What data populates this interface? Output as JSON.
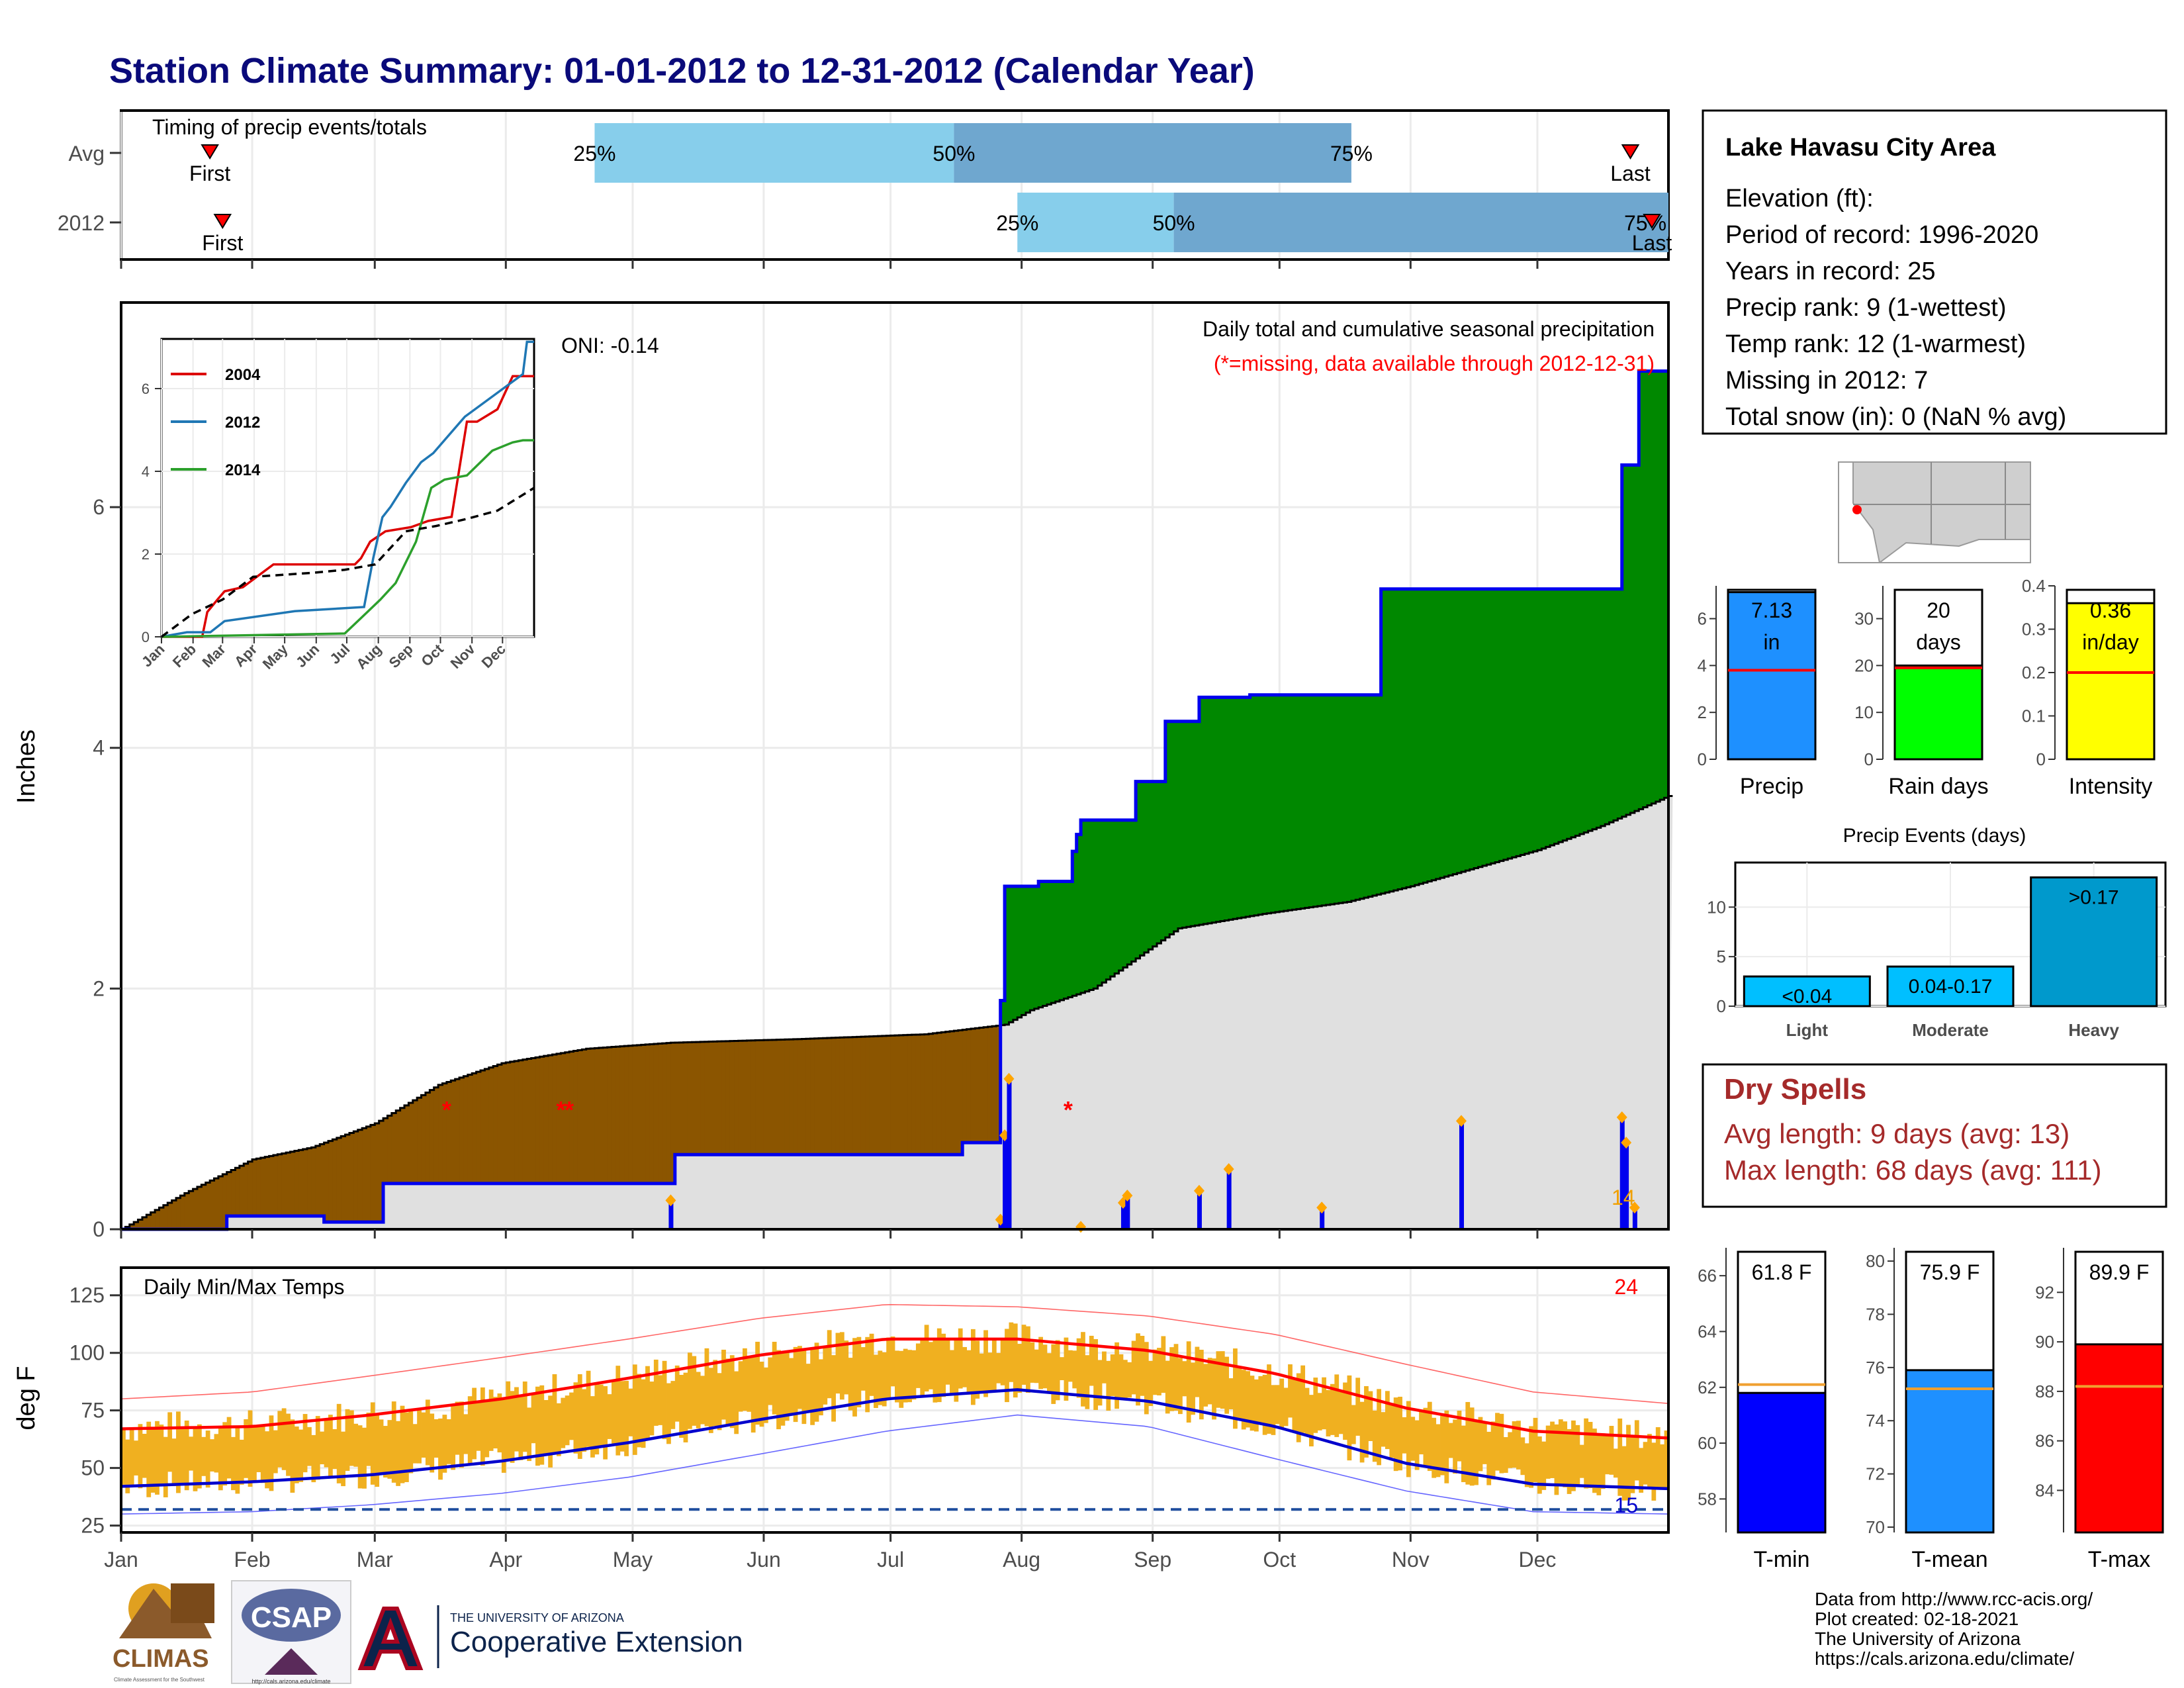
{
  "header": {
    "title": "Station Climate Summary: 01-01-2012 to 12-31-2012 (Calendar Year)"
  },
  "colors": {
    "title": "#0a0a7a",
    "deficit": "#8b5500",
    "surplus": "#008800",
    "avg_fill": "#e0e0e0",
    "cum_line": "#0000ee",
    "tmax": "#ff0000",
    "tmin": "#0000cc",
    "range_bar": "#f0b020",
    "quartile_light": "#87ceeb",
    "quartile_dark": "#6fa7cf"
  },
  "timing_panel": {
    "title": "Timing of precip events/totals",
    "rows": [
      {
        "label": "Avg",
        "first_day": 21,
        "p25_day": 112,
        "p50_day": 197,
        "p75_day": 291,
        "last_day": 357,
        "first_label": "First",
        "last_label": "Last",
        "p25_label": "25%",
        "p50_label": "50%",
        "p75_label": "75%"
      },
      {
        "label": "2012",
        "first_day": 24,
        "p25_day": 212,
        "p50_day": 249,
        "p75_day": 382,
        "last_day": 384,
        "first_label": "First",
        "last_label": "Last",
        "p25_label": "25%",
        "p50_label": "50%",
        "p75_label": "75%"
      }
    ]
  },
  "precip_panel": {
    "ylabel": "Inches",
    "yticks": [
      0,
      2,
      4,
      6
    ],
    "oni_label": "ONI: -0.14",
    "subtitle": "Daily total and cumulative seasonal precipitation",
    "missing_note": "(*=missing, data available through 2012-12-31)",
    "missing_count_label": "14"
  },
  "chart_data": [
    {
      "type": "area",
      "title": "Daily total and cumulative seasonal precipitation",
      "ylabel": "Inches",
      "ylim": [
        0,
        7.7
      ],
      "xlim": [
        0,
        366
      ],
      "x_categories": [
        "Jan",
        "Feb",
        "Mar",
        "Apr",
        "May",
        "Jun",
        "Jul",
        "Aug",
        "Sep",
        "Oct",
        "Nov",
        "Dec"
      ],
      "series": [
        {
          "name": "cumulative 2012",
          "x": [
            0,
            25,
            25,
            48,
            48,
            62,
            62,
            131,
            131,
            199,
            199,
            208,
            208,
            209,
            209,
            217,
            217,
            225,
            225,
            226,
            226,
            227,
            227,
            240,
            240,
            247,
            247,
            255,
            255,
            267,
            267,
            298,
            298,
            355,
            355,
            359,
            359,
            366
          ],
          "y": [
            0,
            0,
            0.11,
            0.11,
            0.06,
            0.06,
            0.38,
            0.38,
            0.62,
            0.62,
            0.72,
            0.72,
            1.9,
            1.9,
            2.85,
            2.85,
            2.89,
            2.89,
            3.14,
            3.14,
            3.28,
            3.28,
            3.4,
            3.4,
            3.72,
            3.72,
            4.22,
            4.22,
            4.42,
            4.42,
            4.44,
            4.44,
            5.32,
            5.32,
            6.35,
            6.35,
            7.13,
            7.13
          ]
        },
        {
          "name": "average cumulative",
          "x": [
            0,
            15,
            31,
            45,
            60,
            75,
            90,
            110,
            130,
            160,
            190,
            209,
            215,
            230,
            250,
            270,
            290,
            305,
            320,
            335,
            350,
            366
          ],
          "y": [
            0,
            0.3,
            0.58,
            0.68,
            0.88,
            1.2,
            1.38,
            1.5,
            1.55,
            1.58,
            1.62,
            1.7,
            1.82,
            2.0,
            2.5,
            2.62,
            2.72,
            2.85,
            3.0,
            3.15,
            3.35,
            3.6
          ]
        },
        {
          "name": "daily precip",
          "x": [
            130,
            208,
            209,
            210,
            227,
            237,
            238,
            255,
            262,
            284,
            317,
            355,
            356,
            358
          ],
          "y": [
            0.24,
            0.08,
            0.78,
            1.25,
            0.02,
            0.22,
            0.28,
            0.32,
            0.5,
            0.18,
            0.9,
            0.93,
            0.72,
            0.18
          ]
        },
        {
          "name": "missing",
          "x": [
            77,
            104,
            106,
            224
          ],
          "y": [
            1.0,
            1.0,
            1.0,
            1.0
          ]
        }
      ]
    },
    {
      "type": "line",
      "title": "",
      "xlabel": "",
      "ylabel": "",
      "ylim": [
        0,
        7.2
      ],
      "yticks": [
        0,
        2,
        4,
        6
      ],
      "xtick_labels": [
        "Jan",
        "Feb",
        "Mar",
        "Apr",
        "May",
        "Jun",
        "Jul",
        "Aug",
        "Sep",
        "Oct",
        "Nov",
        "Dec"
      ],
      "legend": "top-left",
      "series": [
        {
          "name": "2004",
          "color": "#dd0000",
          "x": [
            0,
            40,
            45,
            55,
            62,
            80,
            110,
            160,
            190,
            196,
            205,
            220,
            245,
            262,
            285,
            300,
            310,
            330,
            345,
            366
          ],
          "y": [
            0,
            0,
            0.6,
            0.9,
            1.1,
            1.2,
            1.75,
            1.75,
            1.75,
            1.9,
            2.3,
            2.55,
            2.65,
            2.8,
            2.9,
            5.2,
            5.2,
            5.5,
            6.3,
            6.3
          ]
        },
        {
          "name": "2012",
          "color": "#1f77b4",
          "x": [
            0,
            25,
            48,
            62,
            131,
            199,
            208,
            217,
            225,
            240,
            255,
            267,
            298,
            355,
            359,
            366
          ],
          "y": [
            0,
            0.11,
            0.11,
            0.38,
            0.62,
            0.72,
            1.9,
            2.89,
            3.14,
            3.72,
            4.22,
            4.44,
            5.32,
            6.35,
            7.13,
            7.13
          ]
        },
        {
          "name": "2014",
          "color": "#2ca02c",
          "x": [
            0,
            180,
            198,
            215,
            230,
            250,
            265,
            278,
            300,
            325,
            345,
            355,
            366
          ],
          "y": [
            0,
            0.08,
            0.5,
            0.9,
            1.3,
            2.3,
            3.6,
            3.8,
            3.9,
            4.5,
            4.7,
            4.75,
            4.75
          ]
        },
        {
          "name": "average",
          "color": "#000000",
          "x": [
            0,
            30,
            60,
            90,
            120,
            150,
            180,
            210,
            240,
            270,
            300,
            330,
            366
          ],
          "y": [
            0,
            0.55,
            0.9,
            1.45,
            1.5,
            1.55,
            1.62,
            1.75,
            2.55,
            2.68,
            2.85,
            3.05,
            3.6
          ]
        }
      ]
    },
    {
      "type": "line",
      "title": "Daily Min/Max Temps",
      "ylabel": "deg F",
      "ylim": [
        22,
        137
      ],
      "yticks": [
        25,
        50,
        75,
        100,
        125
      ],
      "xtick_labels": [
        "Jan",
        "Feb",
        "Mar",
        "Apr",
        "May",
        "Jun",
        "Jul",
        "Aug",
        "Sep",
        "Oct",
        "Nov",
        "Dec"
      ],
      "reference_line": 32,
      "record_high_count": "24",
      "record_low_count": "15",
      "series": [
        {
          "name": "avg max",
          "x": [
            0,
            31,
            59,
            90,
            120,
            151,
            181,
            212,
            243,
            273,
            304,
            334,
            366
          ],
          "y": [
            67,
            68,
            73,
            80,
            89,
            99,
            106,
            106,
            101,
            91,
            76,
            66,
            63
          ]
        },
        {
          "name": "avg min",
          "x": [
            0,
            31,
            59,
            90,
            120,
            151,
            181,
            212,
            243,
            273,
            304,
            334,
            366
          ],
          "y": [
            42,
            44,
            47,
            53,
            61,
            71,
            80,
            84,
            79,
            68,
            52,
            43,
            41
          ]
        },
        {
          "name": "record max",
          "x": [
            0,
            31,
            59,
            90,
            120,
            151,
            181,
            212,
            243,
            273,
            304,
            334,
            366
          ],
          "y": [
            80,
            83,
            90,
            98,
            106,
            115,
            121,
            120,
            116,
            108,
            95,
            83,
            78
          ]
        },
        {
          "name": "record min",
          "x": [
            0,
            31,
            59,
            90,
            120,
            151,
            181,
            212,
            243,
            273,
            304,
            334,
            366
          ],
          "y": [
            30,
            31,
            34,
            39,
            46,
            56,
            66,
            73,
            68,
            54,
            40,
            31,
            30
          ]
        }
      ]
    },
    {
      "type": "bar",
      "title": "",
      "categories": [
        "Precip",
        "Rain days",
        "Intensity"
      ],
      "series": [
        {
          "name": "Precip",
          "value": 7.13,
          "avg": 3.8,
          "ylim": [
            0,
            7.4
          ],
          "yticks": [
            0,
            2,
            4,
            6
          ],
          "label": "7.13 in",
          "color": "#1e90ff"
        },
        {
          "name": "Rain days",
          "value": 20,
          "avg": 19.5,
          "ylim": [
            0,
            37
          ],
          "yticks": [
            0,
            10,
            20,
            30
          ],
          "label": "20 days",
          "color": "#00ff00"
        },
        {
          "name": "Intensity",
          "value": 0.36,
          "avg": 0.2,
          "ylim": [
            0,
            0.4
          ],
          "yticks": [
            0.0,
            0.1,
            0.2,
            0.3,
            0.4
          ],
          "label": "0.36 in/day",
          "color": "#ffff00"
        }
      ]
    },
    {
      "type": "bar",
      "title": "Precip Events (days)",
      "categories": [
        "Light",
        "Moderate",
        "Heavy"
      ],
      "values": [
        3,
        4,
        13
      ],
      "bar_labels": [
        "<0.04",
        "0.04-0.17",
        ">0.17"
      ],
      "ylim": [
        0,
        14.5
      ],
      "yticks": [
        0,
        5,
        10
      ]
    },
    {
      "type": "bar",
      "title": "",
      "categories": [
        "T-min",
        "T-mean",
        "T-max"
      ],
      "series": [
        {
          "name": "T-min",
          "value": 61.8,
          "avg": 62.1,
          "ylim": [
            56.8,
            67
          ],
          "yticks": [
            58,
            60,
            62,
            64,
            66
          ],
          "label": "61.8 F",
          "color": "#0000ff"
        },
        {
          "name": "T-mean",
          "value": 75.9,
          "avg": 75.2,
          "ylim": [
            69.8,
            80.5
          ],
          "yticks": [
            70,
            72,
            74,
            76,
            78,
            80
          ],
          "label": "75.9 F",
          "color": "#1e90ff"
        },
        {
          "name": "T-max",
          "value": 89.9,
          "avg": 88.2,
          "ylim": [
            82.3,
            93.8
          ],
          "yticks": [
            84,
            86,
            88,
            90,
            92
          ],
          "label": "89.9 F",
          "color": "#ff0000"
        }
      ]
    }
  ],
  "info_box": {
    "station": "Lake Havasu City Area",
    "lines": [
      "Elevation (ft):",
      "Period of record: 1996-2020",
      "Years in record: 25",
      "Precip rank: 9 (1-wettest)",
      "Temp rank: 12 (1-warmest)",
      "Missing in 2012: 7",
      "Total snow (in): 0 (NaN % avg)"
    ]
  },
  "dry_spells": {
    "title": "Dry Spells",
    "avg_line": "Avg length: 9 days (avg: 13)",
    "max_line": "Max length: 68 days (avg: 111)"
  },
  "credits": {
    "lines": [
      "Data from http://www.rcc-acis.org/",
      "Plot created: 02-18-2021",
      "The University of Arizona",
      "https://cals.arizona.edu/climate/"
    ]
  },
  "logos": {
    "climas": "CLIMAS",
    "climas_sub": "Climate Assessment for the Southwest",
    "csap": "CSAP",
    "csap_url": "http://cals.arizona.edu/climate",
    "ua_org": "THE UNIVERSITY OF ARIZONA",
    "ua_unit": "Cooperative Extension"
  }
}
